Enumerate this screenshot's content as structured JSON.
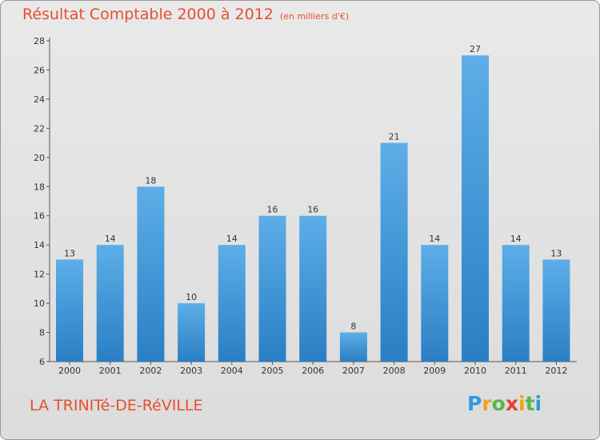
{
  "header": {
    "title": "Résultat Comptable 2000 à 2012",
    "subtitle": "(en milliers d'€)"
  },
  "footer": {
    "place_name": "LA TRINITé-DE-RéVILLE",
    "logo_letters": [
      "P",
      "r",
      "o",
      "x",
      "i",
      "t",
      "i"
    ],
    "logo_colors": [
      "#2f9be0",
      "#f0a21c",
      "#54b948",
      "#e5402d",
      "#f0a21c",
      "#54b948",
      "#2f9be0"
    ]
  },
  "chart_data": {
    "type": "bar",
    "title": "Résultat Comptable 2000 à 2012",
    "subtitle": "(en milliers d'€)",
    "categories": [
      "2000",
      "2001",
      "2002",
      "2003",
      "2004",
      "2005",
      "2006",
      "2007",
      "2008",
      "2009",
      "2010",
      "2011",
      "2012"
    ],
    "values": [
      13,
      14,
      18,
      10,
      14,
      16,
      16,
      8,
      21,
      14,
      27,
      14,
      13
    ],
    "ylim": [
      6,
      28
    ],
    "yticks": [
      6,
      8,
      10,
      12,
      14,
      16,
      18,
      20,
      22,
      24,
      26,
      28
    ],
    "bar_color_top": "#5daee8",
    "bar_color_bottom": "#2a7fc4",
    "grid": false
  }
}
